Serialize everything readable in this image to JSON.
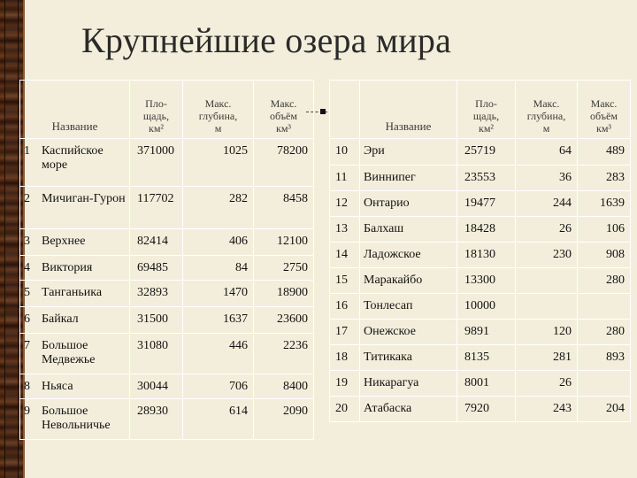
{
  "title": "Крупнейшие озера мира",
  "headers": {
    "name": "Название",
    "area": [
      "Пло-",
      "щадь,",
      "км²"
    ],
    "depth": [
      "Макс.",
      "глубина,",
      "м"
    ],
    "volume": [
      "Макс.",
      "объём",
      "км³"
    ]
  },
  "left_rows": [
    {
      "n": "1",
      "name": "Каспийское море",
      "area": "371000",
      "depth": "1025",
      "volume": "78200"
    },
    {
      "n": "2",
      "name": "Мичиган-Гурон",
      "area": "117702",
      "depth": "282",
      "volume": "8458"
    },
    {
      "n": "3",
      "name": "Верхнее",
      "area": "82414",
      "depth": "406",
      "volume": "12100"
    },
    {
      "n": "4",
      "name": "Виктория",
      "area": "69485",
      "depth": "84",
      "volume": "2750"
    },
    {
      "n": "5",
      "name": "Танганьика",
      "area": "32893",
      "depth": "1470",
      "volume": "18900"
    },
    {
      "n": "6",
      "name": "Байкал",
      "area": "31500",
      "depth": "1637",
      "volume": "23600"
    },
    {
      "n": "7",
      "name": "Большое Медвежье",
      "area": "31080",
      "depth": "446",
      "volume": "2236"
    },
    {
      "n": "8",
      "name": "Ньяса",
      "area": "30044",
      "depth": "706",
      "volume": "8400"
    },
    {
      "n": "9",
      "name": "Большое Невольничье",
      "area": "28930",
      "depth": "614",
      "volume": "2090"
    }
  ],
  "right_rows": [
    {
      "n": "10",
      "name": "Эри",
      "area": "25719",
      "depth": "64",
      "volume": "489"
    },
    {
      "n": "11",
      "name": "Виннипег",
      "area": "23553",
      "depth": "36",
      "volume": "283"
    },
    {
      "n": "12",
      "name": "Онтарио",
      "area": "19477",
      "depth": "244",
      "volume": "1639"
    },
    {
      "n": "13",
      "name": "Балхаш",
      "area": "18428",
      "depth": "26",
      "volume": "106"
    },
    {
      "n": "14",
      "name": "Ладожское",
      "area": "18130",
      "depth": "230",
      "volume": "908"
    },
    {
      "n": "15",
      "name": "Маракайбо",
      "area": "13300",
      "depth": "",
      "volume": "280"
    },
    {
      "n": "16",
      "name": "Тонлесап",
      "area": "10000",
      "depth": "",
      "volume": ""
    },
    {
      "n": "17",
      "name": "Онежское",
      "area": "9891",
      "depth": "120",
      "volume": "280"
    },
    {
      "n": "18",
      "name": "Титикака",
      "area": "8135",
      "depth": "281",
      "volume": "893"
    },
    {
      "n": "19",
      "name": "Никарагуа",
      "area": "8001",
      "depth": "26",
      "volume": ""
    },
    {
      "n": "20",
      "name": "Атабаска",
      "area": "7920",
      "depth": "243",
      "volume": "204"
    }
  ]
}
